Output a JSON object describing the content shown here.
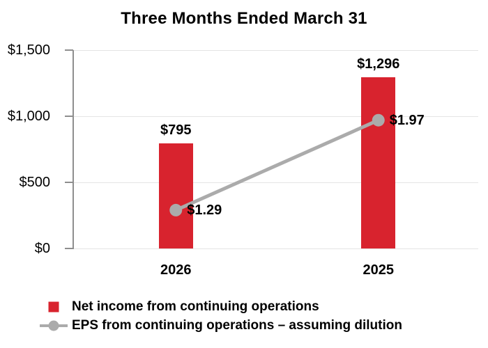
{
  "colors": {
    "bar": "#D8232E",
    "line": "#ABABAB",
    "grid": "#E4E4E4",
    "axis": "#8E8E8E",
    "text": "#000000",
    "background": "#FFFFFF"
  },
  "chart_data": {
    "type": "bar",
    "title": "Three Months Ended March 31",
    "categories": [
      "2026",
      "2025"
    ],
    "series": [
      {
        "name": "Net income from continuing operations",
        "type": "bar",
        "axis": "left",
        "values": [
          795,
          1296
        ],
        "labels": [
          "$795",
          "$1,296"
        ]
      },
      {
        "name": "EPS from continuing operations – assuming dilution",
        "type": "line",
        "axis": "right",
        "values": [
          1.29,
          1.97
        ],
        "labels": [
          "$1.29",
          "$1.97"
        ]
      }
    ],
    "left_axis": {
      "range": [
        0,
        1500
      ],
      "ticks": [
        0,
        500,
        1000,
        1500
      ],
      "tick_labels": [
        "$0",
        "$500",
        "$1,000",
        "$1,500"
      ]
    },
    "right_axis": {
      "range": [
        1.0,
        2.5
      ],
      "visible": false
    },
    "grid": true,
    "legend_position": "bottom-left"
  }
}
